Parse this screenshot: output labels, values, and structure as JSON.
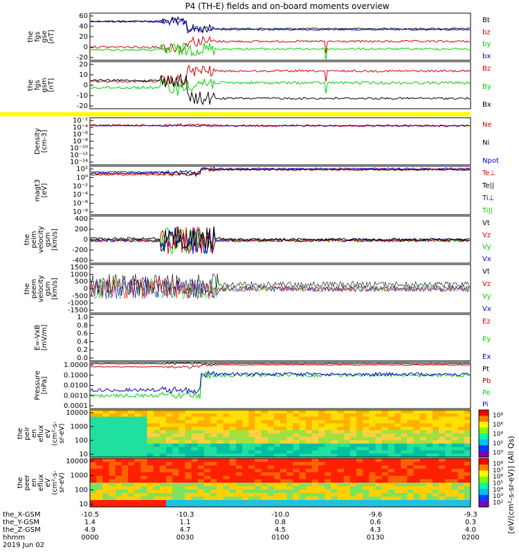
{
  "title": "P4 (TH-E) fields and on-board moments overview",
  "colors": {
    "black": "#000000",
    "red": "#d40000",
    "green": "#00d000",
    "blue": "#0000d8",
    "yellow": "#ffff00"
  },
  "panels": [
    {
      "id": "fgs_gse",
      "ylabel": [
        "the",
        "fgs",
        "gse",
        "[nT]"
      ],
      "yticks": [
        "60",
        "40",
        "20",
        "0",
        "-20"
      ],
      "legend": [
        {
          "text": "Bt",
          "color": "black"
        },
        {
          "text": "bz",
          "color": "red"
        },
        {
          "text": "by",
          "color": "green"
        },
        {
          "text": "bx",
          "color": "blue"
        }
      ]
    },
    {
      "id": "fgs_gsm",
      "ylabel": [
        "the",
        "fgs",
        "gsm",
        "[nT]"
      ],
      "yticks": [
        "20",
        "10",
        "0",
        "-10",
        "-20"
      ],
      "legend": [
        {
          "text": "Bz",
          "color": "red"
        },
        {
          "text": "By",
          "color": "green"
        },
        {
          "text": "Bx",
          "color": "black"
        }
      ]
    },
    {
      "id": "density",
      "ylabel": [
        "Density",
        "[cm-3]"
      ],
      "yticks": [
        "10⁻²",
        "10⁻⁴",
        "10⁻⁶",
        "10⁻⁸",
        "10⁻¹⁰",
        "10⁻¹²",
        "10⁻¹⁴"
      ],
      "legend": [
        {
          "text": "Ne",
          "color": "red"
        },
        {
          "text": "Ni",
          "color": "black"
        },
        {
          "text": "Npot",
          "color": "blue"
        }
      ]
    },
    {
      "id": "temp",
      "ylabel": [
        "magt3",
        "[eV]"
      ],
      "yticks": [
        "10²",
        "10⁰",
        "10⁻²",
        "10⁻⁴",
        "10⁻⁶",
        "10⁻⁸"
      ],
      "legend": [
        {
          "text": "Te⊥",
          "color": "red"
        },
        {
          "text": "Te||",
          "color": "black"
        },
        {
          "text": "Ti⊥",
          "color": "blue"
        },
        {
          "text": "Ti||",
          "color": "green"
        }
      ]
    },
    {
      "id": "peim",
      "ylabel": [
        "the",
        "peim",
        "velocity",
        "gsm",
        "[km/s]"
      ],
      "yticks": [
        "400",
        "200",
        "0",
        "-200",
        "-400"
      ],
      "legend": [
        {
          "text": "Vt",
          "color": "black"
        },
        {
          "text": "Vz",
          "color": "red"
        },
        {
          "text": "Vy",
          "color": "green"
        },
        {
          "text": "Vx",
          "color": "blue"
        }
      ]
    },
    {
      "id": "peem",
      "ylabel": [
        "the",
        "peem",
        "velocity",
        "gsm",
        "[km/s]"
      ],
      "yticks": [
        "1500",
        "1000",
        "500",
        "0",
        "-500",
        "-1000",
        "-1500"
      ],
      "legend": [
        {
          "text": "Vt",
          "color": "black"
        },
        {
          "text": "Vz",
          "color": "red"
        },
        {
          "text": "Vy",
          "color": "green"
        },
        {
          "text": "Vx",
          "color": "blue"
        }
      ]
    },
    {
      "id": "efield",
      "ylabel": [
        "E=-VxB",
        "[mV/m]"
      ],
      "yticks": [
        "1.0",
        "0.8",
        "0.6",
        "0.4",
        "0.2",
        "0.0"
      ],
      "legend": [
        {
          "text": "Ez",
          "color": "red"
        },
        {
          "text": "Ey",
          "color": "green"
        },
        {
          "text": "Ex",
          "color": "blue"
        }
      ]
    },
    {
      "id": "pressure",
      "ylabel": [
        "Pressure",
        "[nPa]"
      ],
      "yticks": [
        "1.0000",
        "0.1000",
        "0.0100",
        "0.0010",
        "0.0001"
      ],
      "legend": [
        {
          "text": "Pt",
          "color": "black"
        },
        {
          "text": "Pb",
          "color": "red"
        },
        {
          "text": "Pe",
          "color": "green"
        },
        {
          "text": "Pi",
          "color": "blue"
        }
      ]
    },
    {
      "id": "peir",
      "ylabel": [
        "the",
        "peir",
        "en",
        "eflux",
        "eV",
        "(cm²-s-",
        "sr-eV)"
      ],
      "yticks": [
        "10000",
        "1000",
        "100",
        "10"
      ],
      "cbar_ticks": [
        "10⁸",
        "10⁶",
        "10⁴",
        "10²",
        "10⁰"
      ]
    },
    {
      "id": "peer",
      "ylabel": [
        "the",
        "peer",
        "en",
        "eflux",
        "eV",
        "(cm²-s-",
        "sr-eV)"
      ],
      "yticks": [
        "10000",
        "1000",
        "100",
        "10"
      ],
      "cbar_ticks": [
        "10⁸",
        "10⁷",
        "10⁶",
        "10⁵",
        "10⁴",
        "10³",
        "10²"
      ]
    }
  ],
  "cbar_label": "[eV/(cm²-s-sr-eV)] (All Qs)",
  "xaxis": {
    "rows": [
      {
        "label": "the_X-GSM",
        "values": [
          "-10.5",
          "-10.3",
          "-10.0",
          "-9.6",
          "-9.3"
        ]
      },
      {
        "label": "the_Y-GSM",
        "values": [
          "1.4",
          "1.1",
          "0.8",
          "0.6",
          "0.3"
        ]
      },
      {
        "label": "the_Z-GSM",
        "values": [
          "4.9",
          "4.7",
          "4.5",
          "4.3",
          "4.0"
        ]
      },
      {
        "label": "hhmm",
        "values": [
          "0000",
          "0030",
          "0100",
          "0130",
          "0200"
        ]
      }
    ],
    "date": "2019 Jun 02"
  },
  "chart_data": {
    "type": "line",
    "time_range": [
      "0000",
      "0200"
    ],
    "series": [
      {
        "name": "Bt",
        "x": [
          "0000",
          "0020",
          "0025",
          "0030",
          "0100",
          "0200"
        ],
        "values": [
          42,
          44,
          38,
          30,
          32,
          34
        ]
      },
      {
        "name": "bz",
        "x": [
          "0000",
          "0020",
          "0030",
          "0100",
          "0200"
        ],
        "values": [
          -3,
          -1,
          8,
          10,
          12
        ]
      },
      {
        "name": "by",
        "x": [
          "0000",
          "0020",
          "0030",
          "0100",
          "0200"
        ],
        "values": [
          -6,
          -4,
          -2,
          -3,
          -3
        ]
      },
      {
        "name": "bx",
        "x": [
          "0000",
          "0020",
          "0030",
          "0100",
          "0200"
        ],
        "values": [
          40,
          42,
          30,
          32,
          33
        ]
      }
    ]
  }
}
